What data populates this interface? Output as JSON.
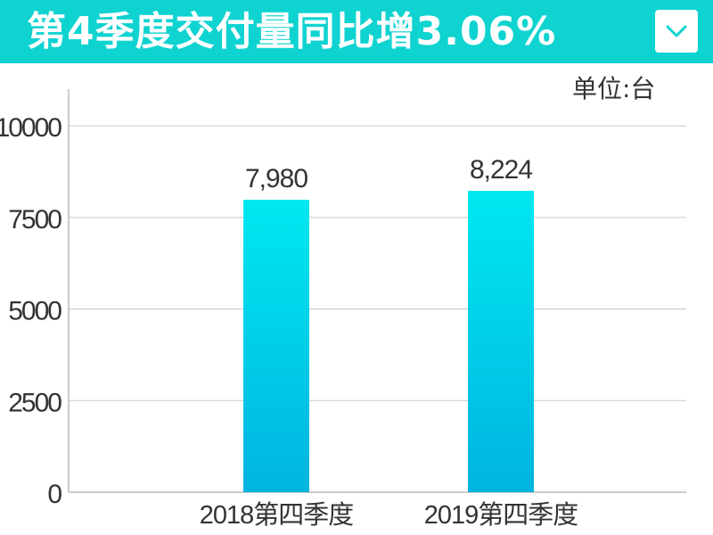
{
  "header": {
    "title": "第4季度交付量同比增3.06%",
    "dropdown_icon": "chevron-down-icon",
    "background_color": "#0fd3d0"
  },
  "chart_data": {
    "type": "bar",
    "unit_label": "单位:台",
    "categories": [
      "2018第四季度",
      "2019第四季度"
    ],
    "values": [
      7980,
      8224
    ],
    "value_labels": [
      "7,980",
      "8,224"
    ],
    "yticks": [
      0,
      2500,
      5000,
      7500,
      10000
    ],
    "ylim": [
      0,
      11000
    ],
    "grid": true,
    "bar_color_top": "#00e8f0",
    "bar_color_bottom": "#00b4e0"
  }
}
